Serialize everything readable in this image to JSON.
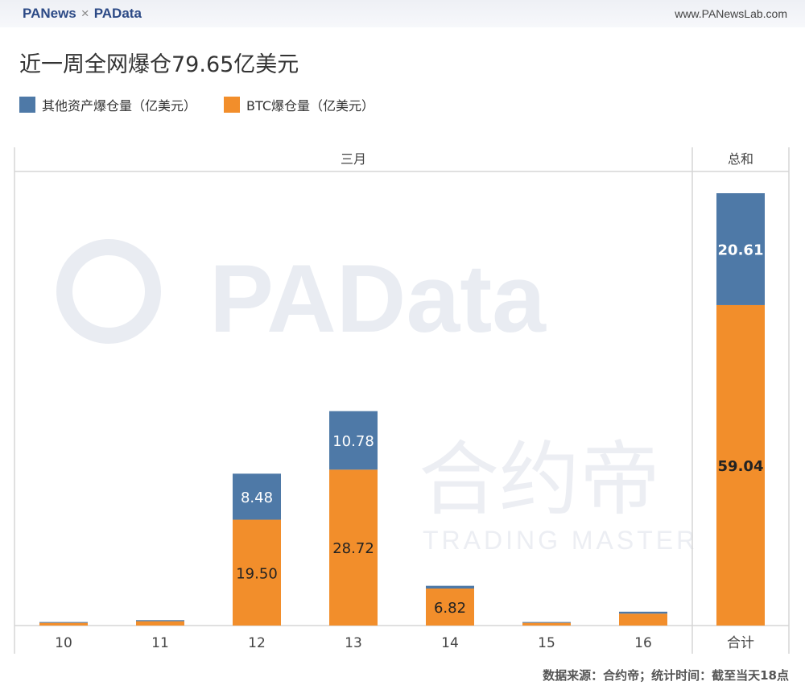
{
  "header": {
    "brand_left": "PANews",
    "brand_sep": "×",
    "brand_right": "PAData",
    "site": "www.PANewsLab.com"
  },
  "watermark": {
    "logo1": "PAData",
    "logo2": "合约帝",
    "logo2_sub": "TRADING MASTER"
  },
  "footer": "数据来源：合约帝；统计时间：截至当天18点",
  "colors": {
    "other": "#4e79a7",
    "btc": "#f28e2b"
  },
  "chart_data": {
    "type": "bar",
    "stacked": true,
    "title": "近一周全网爆仓79.65亿美元",
    "group_labels": [
      "三月",
      "总和"
    ],
    "categories": [
      "10",
      "11",
      "12",
      "13",
      "14",
      "15",
      "16",
      "合计"
    ],
    "series": [
      {
        "name": "BTC爆仓量（亿美元）",
        "values": [
          0.5,
          0.8,
          19.5,
          28.72,
          6.82,
          0.5,
          2.2,
          59.04
        ],
        "labels": [
          null,
          null,
          "19.50",
          "28.72",
          "6.82",
          null,
          null,
          "59.04"
        ]
      },
      {
        "name": "其他资产爆仓量（亿美元）",
        "values": [
          0.15,
          0.2,
          8.48,
          10.78,
          0.5,
          0.15,
          0.35,
          20.61
        ],
        "labels": [
          null,
          null,
          "8.48",
          "10.78",
          null,
          null,
          null,
          "20.61"
        ]
      }
    ],
    "legend_order": [
      "其他资产爆仓量（亿美元）",
      "BTC爆仓量（亿美元）"
    ],
    "legend_position": "top-left",
    "ylim": [
      0,
      80
    ],
    "grid": false
  }
}
